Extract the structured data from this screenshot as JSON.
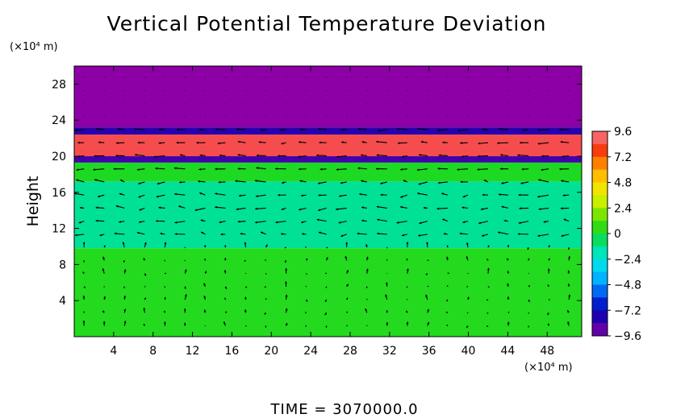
{
  "chart_data": {
    "type": "heatmap",
    "title": "Vertical Potential Temperature Deviation",
    "ylabel": "Height",
    "x_units": "(×10⁴ m)",
    "y_units": "(×10⁴ m)",
    "xlim": [
      0,
      51.5
    ],
    "ylim": [
      0,
      30
    ],
    "x_ticks": [
      4,
      8,
      12,
      16,
      20,
      24,
      28,
      32,
      36,
      40,
      44,
      48
    ],
    "y_ticks": [
      4,
      8,
      12,
      16,
      20,
      24,
      28
    ],
    "x_tick_labels": [
      "4",
      "8",
      "12",
      "16",
      "20",
      "24",
      "28",
      "32",
      "36",
      "40",
      "44",
      "48"
    ],
    "y_tick_labels": [
      "4",
      "8",
      "12",
      "16",
      "20",
      "24",
      "28"
    ],
    "colorbar": {
      "min": -9.6,
      "max": 9.6,
      "ticks": [
        9.6,
        7.2,
        4.8,
        2.4,
        0,
        -2.4,
        -4.8,
        -7.2,
        -9.6
      ],
      "tick_labels": [
        "9.6",
        "7.2",
        "4.8",
        "2.4",
        "0",
        "−2.4",
        "−4.8",
        "−7.2",
        "−9.6"
      ]
    },
    "bands": [
      {
        "y0": 0,
        "y1": 9.8,
        "value": 0.3
      },
      {
        "y0": 9.8,
        "y1": 17.2,
        "value": -1.2
      },
      {
        "y0": 17.2,
        "y1": 19.3,
        "value": 0.2
      },
      {
        "y0": 19.3,
        "y1": 20.0,
        "value": -8.5
      },
      {
        "y0": 20.0,
        "y1": 22.4,
        "value": 8.8
      },
      {
        "y0": 22.4,
        "y1": 23.2,
        "value": -8.0
      },
      {
        "y0": 23.2,
        "y1": 30,
        "value": -9.6
      }
    ],
    "vectors": "velocity field arrows"
  },
  "footer": {
    "time_text": "TIME  =  3070000.0"
  }
}
